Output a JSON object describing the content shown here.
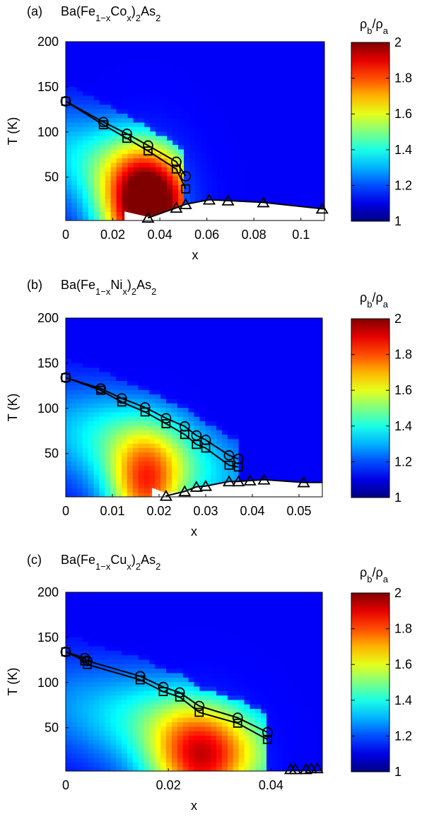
{
  "chart_data": [
    {
      "type": "heatmap",
      "panel_label": "(a)",
      "title_parts": [
        "Ba(Fe",
        "1−x",
        "Co",
        "x",
        ")",
        "2",
        "As",
        "2"
      ],
      "xlabel": "x",
      "ylabel": "T (K)",
      "xlim": [
        0,
        0.11
      ],
      "ylim": [
        2,
        200
      ],
      "xticks": [
        0,
        0.02,
        0.04,
        0.06,
        0.08,
        0.1
      ],
      "xtick_labels": [
        "0",
        "0.02",
        "0.04",
        "0.06",
        "0.08",
        "0.1"
      ],
      "yticks": [
        50,
        100,
        150,
        200
      ],
      "ytick_labels": [
        "50",
        "100",
        "150",
        "200"
      ],
      "colorbar": {
        "label_parts": [
          "ρ",
          "b",
          "/ρ",
          "a"
        ],
        "range": [
          1,
          2
        ],
        "ticks": [
          1,
          1.2,
          1.4,
          1.6,
          1.8,
          2
        ],
        "tick_labels": [
          "1",
          "1.2",
          "1.4",
          "1.6",
          "1.8",
          "2"
        ]
      },
      "hotspot": {
        "x": 0.034,
        "T": 10,
        "amp": 0.95,
        "sx": 0.018,
        "sT": 70
      },
      "series": [
        {
          "marker": "circle",
          "points": [
            [
              0,
              134
            ],
            [
              0.016,
              111
            ],
            [
              0.026,
              98
            ],
            [
              0.035,
              85
            ],
            [
              0.047,
              67
            ],
            [
              0.051,
              51
            ]
          ]
        },
        {
          "marker": "square",
          "points": [
            [
              0,
              134
            ],
            [
              0.016,
              108
            ],
            [
              0.026,
              93
            ],
            [
              0.035,
              79
            ],
            [
              0.047,
              59
            ],
            [
              0.051,
              37
            ]
          ]
        },
        {
          "marker": "triangle",
          "points": [
            [
              0.035,
              5
            ],
            [
              0.047,
              16
            ],
            [
              0.051,
              20
            ],
            [
              0.061,
              25
            ],
            [
              0.069,
              24
            ],
            [
              0.084,
              22
            ],
            [
              0.109,
              15
            ]
          ]
        }
      ]
    },
    {
      "type": "heatmap",
      "panel_label": "(b)",
      "title_parts": [
        "Ba(Fe",
        "1−x",
        "Ni",
        "x",
        ")",
        "2",
        "As",
        "2"
      ],
      "xlabel": "x",
      "ylabel": "T (K)",
      "xlim": [
        0,
        0.055
      ],
      "ylim": [
        2,
        200
      ],
      "xticks": [
        0,
        0.01,
        0.02,
        0.03,
        0.04,
        0.05
      ],
      "xtick_labels": [
        "0",
        "0.01",
        "0.02",
        "0.03",
        "0.04",
        "0.05"
      ],
      "yticks": [
        50,
        100,
        150,
        200
      ],
      "ytick_labels": [
        "50",
        "100",
        "150",
        "200"
      ],
      "colorbar": {
        "label_parts": [
          "ρ",
          "b",
          "/ρ",
          "a"
        ],
        "range": [
          1,
          2
        ],
        "ticks": [
          1,
          1.2,
          1.4,
          1.6,
          1.8,
          2
        ],
        "tick_labels": [
          "1",
          "1.2",
          "1.4",
          "1.6",
          "1.8",
          "2"
        ]
      },
      "hotspot": {
        "x": 0.017,
        "T": 8,
        "amp": 0.6,
        "sx": 0.008,
        "sT": 60
      },
      "series": [
        {
          "marker": "circle",
          "points": [
            [
              0,
              134
            ],
            [
              0.0075,
              122
            ],
            [
              0.012,
              111
            ],
            [
              0.017,
              101
            ],
            [
              0.0215,
              89
            ],
            [
              0.0255,
              80
            ],
            [
              0.028,
              70
            ],
            [
              0.03,
              65
            ],
            [
              0.035,
              48
            ],
            [
              0.037,
              44
            ]
          ]
        },
        {
          "marker": "square",
          "points": [
            [
              0,
              134
            ],
            [
              0.0075,
              120
            ],
            [
              0.012,
              107
            ],
            [
              0.017,
              96
            ],
            [
              0.0215,
              83
            ],
            [
              0.0255,
              71
            ],
            [
              0.028,
              60
            ],
            [
              0.03,
              56
            ],
            [
              0.035,
              37
            ],
            [
              0.037,
              35
            ]
          ]
        },
        {
          "marker": "triangle",
          "points": [
            [
              0.0215,
              3
            ],
            [
              0.0255,
              8
            ],
            [
              0.028,
              13
            ],
            [
              0.03,
              14
            ],
            [
              0.035,
              19
            ],
            [
              0.037,
              19
            ],
            [
              0.0395,
              20
            ],
            [
              0.0425,
              21
            ],
            [
              0.051,
              18
            ]
          ]
        }
      ]
    },
    {
      "type": "heatmap",
      "panel_label": "(c)",
      "title_parts": [
        "Ba(Fe",
        "1−x",
        "Cu",
        "x",
        ")",
        "2",
        "As",
        "2"
      ],
      "xlabel": "x",
      "ylabel": "T (K)",
      "xlim": [
        0,
        0.05
      ],
      "ylim": [
        2,
        200
      ],
      "xticks": [
        0,
        0.02,
        0.04
      ],
      "xtick_labels": [
        "0",
        "0.02",
        "0.04"
      ],
      "yticks": [
        50,
        100,
        150,
        200
      ],
      "ytick_labels": [
        "50",
        "100",
        "150",
        "200"
      ],
      "colorbar": {
        "label_parts": [
          "ρ",
          "b",
          "/ρ",
          "a"
        ],
        "range": [
          1,
          2
        ],
        "ticks": [
          1,
          1.2,
          1.4,
          1.6,
          1.8,
          2
        ],
        "tick_labels": [
          "1",
          "1.2",
          "1.4",
          "1.6",
          "1.8",
          "2"
        ]
      },
      "hotspot": {
        "x": 0.026,
        "T": 8,
        "amp": 0.62,
        "sx": 0.01,
        "sT": 65
      },
      "series": [
        {
          "marker": "circle",
          "points": [
            [
              0,
              134
            ],
            [
              0.0037,
              127
            ],
            [
              0.0042,
              124
            ],
            [
              0.0145,
              107
            ],
            [
              0.019,
              95
            ],
            [
              0.0222,
              89
            ],
            [
              0.026,
              74
            ],
            [
              0.0335,
              61
            ],
            [
              0.0393,
              45
            ]
          ]
        },
        {
          "marker": "square",
          "points": [
            [
              0,
              134
            ],
            [
              0.0037,
              124
            ],
            [
              0.0042,
              120
            ],
            [
              0.0145,
              103
            ],
            [
              0.019,
              90
            ],
            [
              0.0222,
              84
            ],
            [
              0.026,
              67
            ],
            [
              0.0335,
              55
            ],
            [
              0.0393,
              37
            ]
          ]
        },
        {
          "marker": "triangle",
          "points": [
            [
              0.0438,
              4
            ],
            [
              0.0447,
              4
            ],
            [
              0.0468,
              4
            ],
            [
              0.0478,
              5
            ],
            [
              0.049,
              5
            ]
          ]
        }
      ]
    }
  ]
}
